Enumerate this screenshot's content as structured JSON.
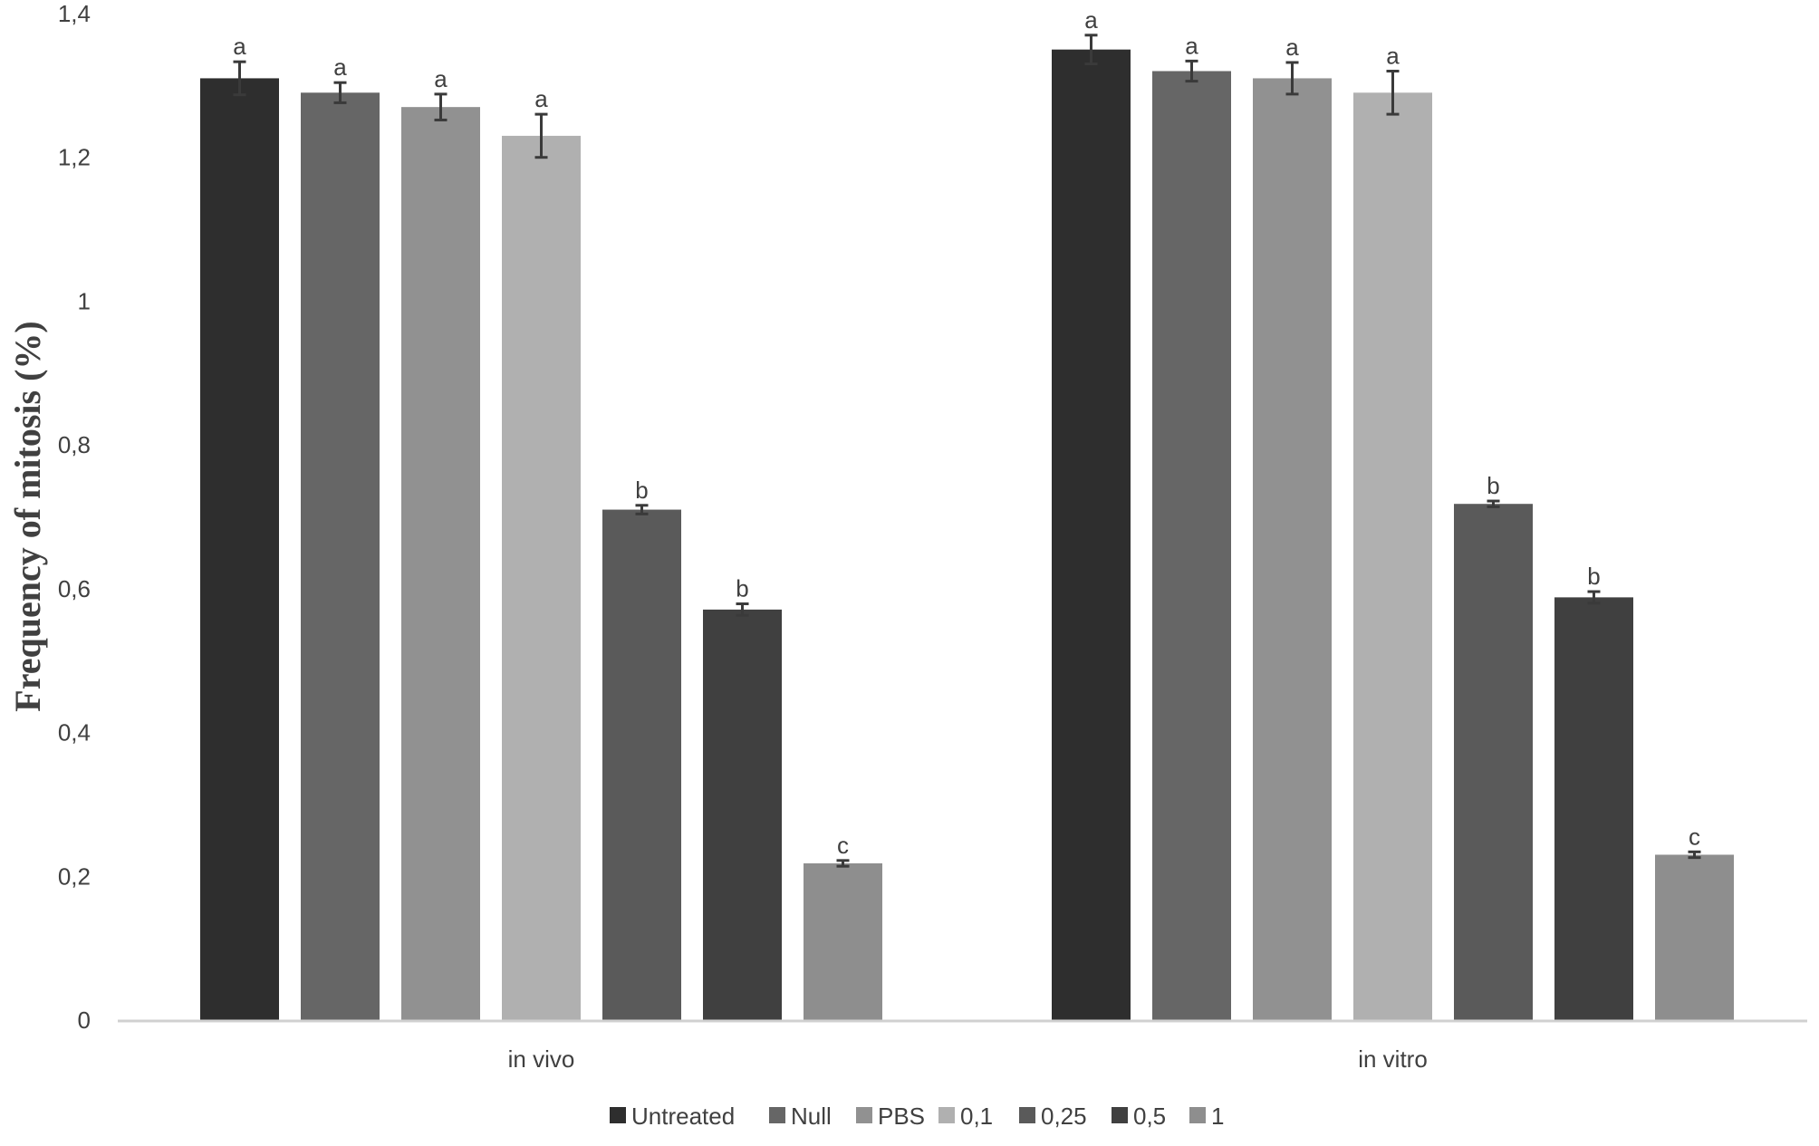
{
  "chart_data": {
    "type": "bar",
    "title": "",
    "xlabel": "",
    "ylabel": "Frequency of mitosis (%)",
    "ylim": [
      0,
      1.4
    ],
    "yticks": [
      "0",
      "0,2",
      "0,4",
      "0,6",
      "0,8",
      "1",
      "1,2",
      "1,4"
    ],
    "grid": false,
    "legend_position": "bottom",
    "categories": [
      "in vivo",
      "in vitro"
    ],
    "series": [
      {
        "name": "Untreated",
        "color": "#2e2e2e",
        "values": [
          1.31,
          1.35
        ],
        "errors": [
          0.023,
          0.02
        ],
        "labels": [
          "a",
          "a"
        ]
      },
      {
        "name": "Null",
        "color": "#666666",
        "values": [
          1.29,
          1.32
        ],
        "errors": [
          0.014,
          0.014
        ],
        "labels": [
          "a",
          "a"
        ]
      },
      {
        "name": "PBS",
        "color": "#919191",
        "values": [
          1.27,
          1.31
        ],
        "errors": [
          0.018,
          0.022
        ],
        "labels": [
          "a",
          "a"
        ]
      },
      {
        "name": "0,1",
        "color": "#b0b0b0",
        "values": [
          1.23,
          1.29
        ],
        "errors": [
          0.03,
          0.03
        ],
        "labels": [
          "a",
          "a"
        ]
      },
      {
        "name": "0,25",
        "color": "#5a5a5a",
        "values": [
          0.71,
          0.718
        ],
        "errors": [
          0.006,
          0.004
        ],
        "labels": [
          "b",
          "b"
        ]
      },
      {
        "name": "0,5",
        "color": "#404040",
        "values": [
          0.571,
          0.588
        ],
        "errors": [
          0.008,
          0.008
        ],
        "labels": [
          "b",
          "b"
        ]
      },
      {
        "name": "1",
        "color": "#8e8e8e",
        "values": [
          0.218,
          0.23
        ],
        "errors": [
          0.004,
          0.004
        ],
        "labels": [
          "c",
          "c"
        ]
      }
    ]
  }
}
